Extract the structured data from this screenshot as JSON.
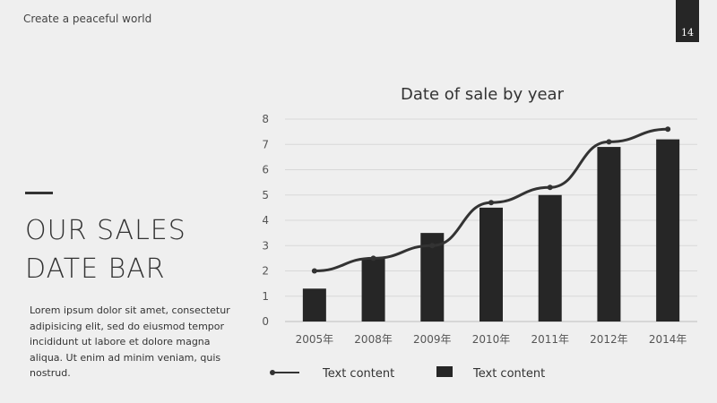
{
  "header": {
    "tagline": "Create a peaceful world",
    "page_number": "14"
  },
  "heading": {
    "line1": "OUR SALES",
    "line2": "DATE BAR"
  },
  "body_text": "Lorem ipsum dolor sit amet, consectetur adipisicing elit, sed do eiusmod tempor incididunt ut labore et dolore magna aliqua. Ut enim ad minim veniam, quis nostrud.",
  "colors": {
    "background": "#efefef",
    "bar": "#262626",
    "line": "#333333",
    "grid": "#d8d8d8"
  },
  "chart_data": {
    "type": "bar",
    "title": "Date of sale by year",
    "categories": [
      "2005年",
      "2008年",
      "2009年",
      "2010年",
      "2011年",
      "2012年",
      "2014年"
    ],
    "ylim": [
      0,
      8
    ],
    "yticks": [
      0,
      1,
      2,
      3,
      4,
      5,
      6,
      7,
      8
    ],
    "grid": true,
    "legend_placement": "bottom",
    "series": [
      {
        "name": "Text content",
        "type": "line",
        "values": [
          2.0,
          2.5,
          3.0,
          4.7,
          5.3,
          7.1,
          7.6
        ]
      },
      {
        "name": "Text content",
        "type": "bar",
        "values": [
          1.3,
          2.5,
          3.5,
          4.5,
          5.0,
          6.9,
          7.2
        ]
      }
    ]
  }
}
